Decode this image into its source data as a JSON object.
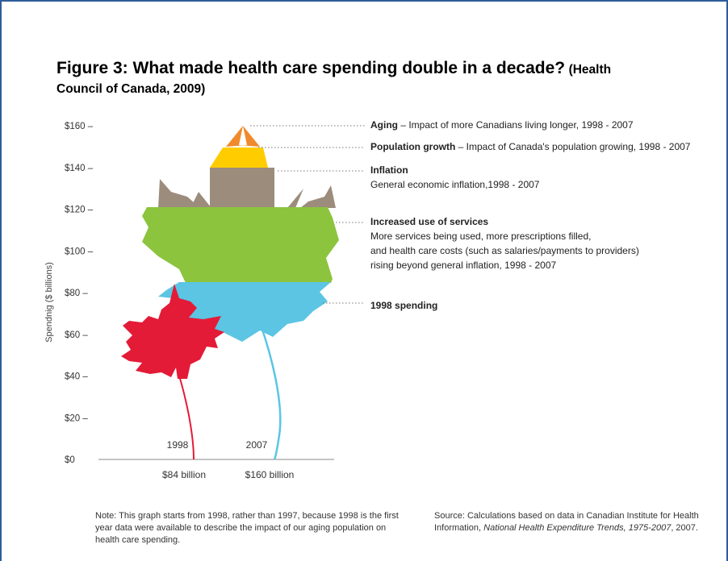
{
  "figure": {
    "title_main": "Figure 3:  What made health care spending double in a decade?",
    "title_source_part1": "(Health",
    "title_source_part2": "Council of Canada, 2009)"
  },
  "chart_data": {
    "type": "bar",
    "ylabel": "Spendnig ($ billions)",
    "ylim": [
      0,
      160
    ],
    "yticks": [
      "$0",
      "$20 –",
      "$40 –",
      "$60 –",
      "$80 –",
      "$100 –",
      "$120 –",
      "$140 –",
      "$160 –"
    ],
    "ytick_values": [
      0,
      20,
      40,
      60,
      80,
      100,
      120,
      140,
      160
    ],
    "categories": [
      "1998",
      "2007"
    ],
    "totals": [
      84,
      160
    ],
    "total_labels": [
      "$84 billion",
      "$160 billion"
    ],
    "series": [
      {
        "name": "1998 spending",
        "color": "#5bc5e3",
        "values": [
          84,
          84
        ]
      },
      {
        "name": "Increased use of services",
        "color": "#8cc43e",
        "values": [
          0,
          36
        ]
      },
      {
        "name": "Inflation",
        "color": "#9c8c7c",
        "values": [
          0,
          21
        ]
      },
      {
        "name": "Population growth",
        "color": "#ffcc00",
        "values": [
          0,
          14
        ]
      },
      {
        "name": "Aging",
        "color": "#f08a2c",
        "values": [
          0,
          5
        ]
      }
    ],
    "year1998_color": "#e31b37",
    "annotations": [
      {
        "head": "Aging",
        "text": " – Impact of more Canadians living longer, 1998 - 2007"
      },
      {
        "head": "Population growth",
        "text": " – Impact of Canada's population growing, 1998 - 2007"
      },
      {
        "head": "Inflation",
        "lines": [
          "General economic inflation,1998 - 2007"
        ]
      },
      {
        "head": "Increased use of services",
        "lines": [
          "More services being used, more prescriptions filled,",
          "and health care costs (such as salaries/payments to providers)",
          "rising beyond general inflation, 1998 - 2007"
        ]
      },
      {
        "head": "1998 spending"
      }
    ]
  },
  "note": {
    "text": "Note: This graph starts from 1998, rather than 1997, because 1998 is the first year data were available to describe the impact of our aging population on health care spending."
  },
  "source": {
    "prefix": "Source: Calculations based on data in Canadian Institute for Health Information, ",
    "italic": "National Health Expenditure Trends, 1975-2007",
    "suffix": ", 2007."
  }
}
